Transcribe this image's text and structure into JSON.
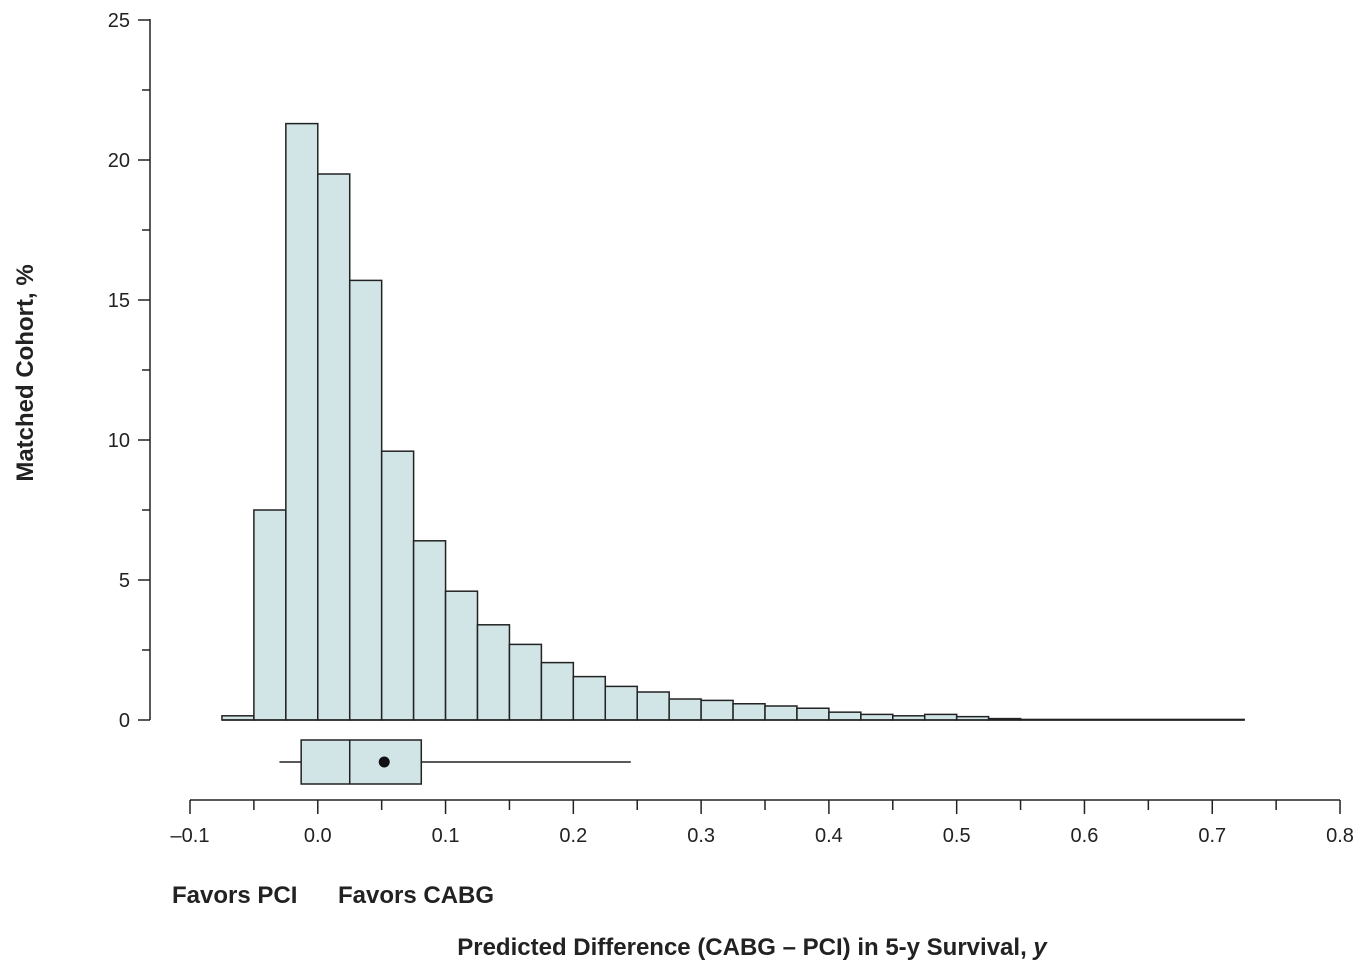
{
  "chart_data": {
    "type": "bar",
    "subtype": "histogram",
    "title": "",
    "xlabel": "Predicted Difference (CABG – PCI) in 5-y Survival, ",
    "xlabel_var": "y",
    "ylabel": "Matched Cohort, %",
    "xlim": [
      -0.1,
      0.8
    ],
    "ylim": [
      0,
      25
    ],
    "x_tick_labels": [
      "–0.1",
      "0.0",
      "0.1",
      "0.2",
      "0.3",
      "0.4",
      "0.5",
      "0.6",
      "0.7",
      "0.8"
    ],
    "y_tick_labels": [
      "0",
      "5",
      "10",
      "15",
      "20",
      "25"
    ],
    "bin_width": 0.025,
    "bins": [
      {
        "x0": -0.075,
        "x1": -0.05,
        "value": 0.15
      },
      {
        "x0": -0.05,
        "x1": -0.025,
        "value": 7.5
      },
      {
        "x0": -0.025,
        "x1": 0.0,
        "value": 21.3
      },
      {
        "x0": 0.0,
        "x1": 0.025,
        "value": 19.5
      },
      {
        "x0": 0.025,
        "x1": 0.05,
        "value": 15.7
      },
      {
        "x0": 0.05,
        "x1": 0.075,
        "value": 9.6
      },
      {
        "x0": 0.075,
        "x1": 0.1,
        "value": 6.4
      },
      {
        "x0": 0.1,
        "x1": 0.125,
        "value": 4.6
      },
      {
        "x0": 0.125,
        "x1": 0.15,
        "value": 3.4
      },
      {
        "x0": 0.15,
        "x1": 0.175,
        "value": 2.7
      },
      {
        "x0": 0.175,
        "x1": 0.2,
        "value": 2.05
      },
      {
        "x0": 0.2,
        "x1": 0.225,
        "value": 1.55
      },
      {
        "x0": 0.225,
        "x1": 0.25,
        "value": 1.2
      },
      {
        "x0": 0.25,
        "x1": 0.275,
        "value": 1.0
      },
      {
        "x0": 0.275,
        "x1": 0.3,
        "value": 0.75
      },
      {
        "x0": 0.3,
        "x1": 0.325,
        "value": 0.7
      },
      {
        "x0": 0.325,
        "x1": 0.35,
        "value": 0.58
      },
      {
        "x0": 0.35,
        "x1": 0.375,
        "value": 0.5
      },
      {
        "x0": 0.375,
        "x1": 0.4,
        "value": 0.42
      },
      {
        "x0": 0.4,
        "x1": 0.425,
        "value": 0.28
      },
      {
        "x0": 0.425,
        "x1": 0.45,
        "value": 0.2
      },
      {
        "x0": 0.45,
        "x1": 0.475,
        "value": 0.15
      },
      {
        "x0": 0.475,
        "x1": 0.5,
        "value": 0.2
      },
      {
        "x0": 0.5,
        "x1": 0.525,
        "value": 0.12
      },
      {
        "x0": 0.525,
        "x1": 0.55,
        "value": 0.05
      },
      {
        "x0": 0.55,
        "x1": 0.725,
        "value": 0.02
      }
    ],
    "boxplot": {
      "whisker_low": -0.03,
      "q1": -0.013,
      "median": 0.025,
      "mean": 0.052,
      "q3": 0.081,
      "whisker_high": 0.245
    },
    "bar_color": "#d1e5e7",
    "edge_color": "#222222",
    "annotations": {
      "favors_left": "Favors PCI",
      "favors_right": "Favors CABG"
    }
  }
}
